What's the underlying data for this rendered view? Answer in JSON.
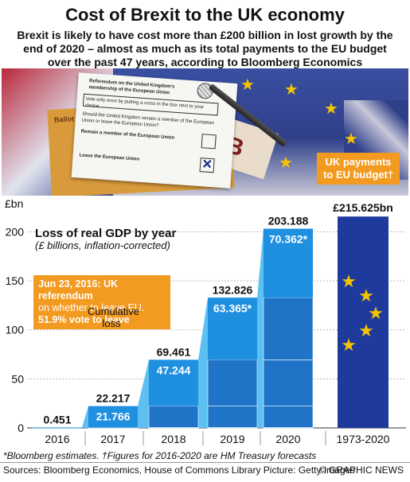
{
  "title": "Cost of Brexit to the UK economy",
  "subtitle": "Brexit is likely to have cost more than £200 billion in lost growth by the end of 2020 – almost as much as its total payments to the EU budget over the past 47 years, according to Bloomberg Economics",
  "photo": {
    "ballot_heading": "Referendum on the United Kingdom's membership of the European Union",
    "ballot_instruction": "Vote only once by putting a cross in the box next to your choice",
    "ballot_question": "Should the United Kingdom remain a member of the European Union or leave the European Union?",
    "option_remain": "Remain a member of the European Union",
    "option_leave": "Leave the European Union",
    "envelope_text": "Ballot",
    "block_letter": "B"
  },
  "unit_label": "£bn",
  "uk_label": "UK payments to EU budget†",
  "gdp_title": "Loss of real GDP by year",
  "gdp_subtitle": "(£ billions, inflation-corrected)",
  "event": {
    "line1": "Jun 23, 2016: UK referendum",
    "line2": "on whether to leave EU.",
    "line3": "51.9% vote to leave"
  },
  "cumulative_label": "Cumulative loss",
  "footnote": "*Bloomberg estimates. †Figures for 2016-2020 are HM Treasury forecasts",
  "sources": "Sources: Bloomberg Economics, House of Commons Library  Picture: Getty Images",
  "credit": "© GRAPHIC NEWS",
  "chart_data": {
    "type": "bar",
    "categories": [
      "2016",
      "2017",
      "2018",
      "2019",
      "2020",
      "1973-2020"
    ],
    "series": [
      {
        "values": [
          0.451,
          21.766,
          47.244,
          63.365,
          70.362,
          null
        ]
      },
      {
        "values": [
          0.451,
          22.217,
          69.461,
          132.826,
          203.188,
          null
        ]
      },
      {
        "name": "UK payments to EU budget",
        "values": [
          null,
          null,
          null,
          null,
          null,
          215.625
        ]
      }
    ],
    "annual_labels": [
      "",
      "21.766",
      "47.244",
      "63.365*",
      "70.362*",
      ""
    ],
    "cumulative_labels": [
      "0.451",
      "22.217",
      "69.461",
      "132.826",
      "203.188",
      "£215.625bn"
    ],
    "ylabel": "£bn",
    "ylim": [
      0,
      215
    ],
    "yticks": [
      0,
      50,
      100,
      150,
      200
    ],
    "colors": {
      "annual": "#1f8fe0",
      "cumulative": "#1f74c8",
      "cumulative_light": "#5cc0f2",
      "uk_budget": "#1e3a9c",
      "star": "#f5c400",
      "highlight": "#f39a20"
    }
  }
}
